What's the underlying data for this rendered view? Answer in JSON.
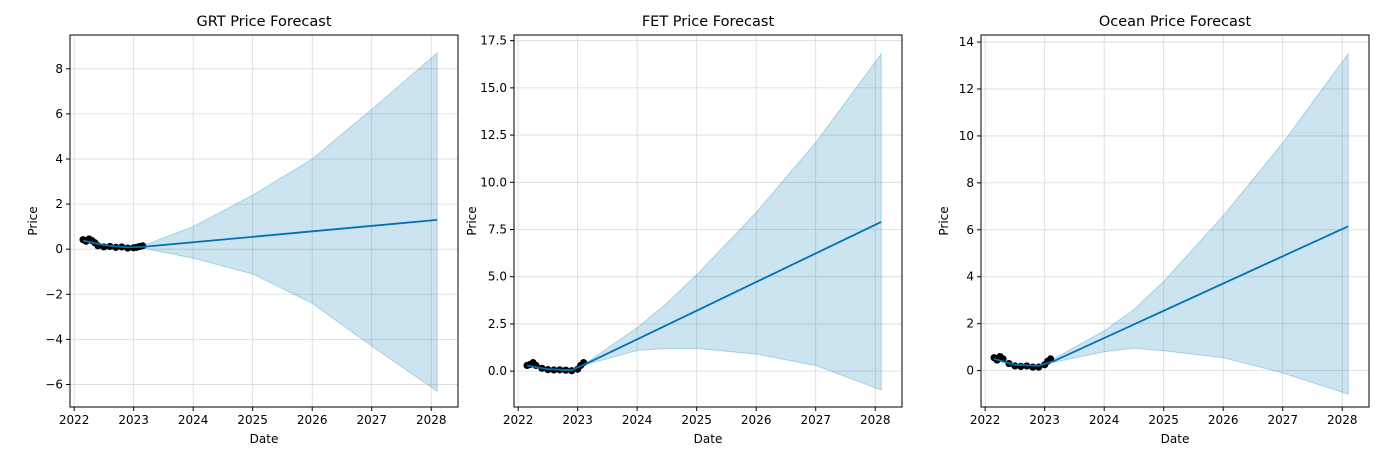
{
  "colors": {
    "forecast_line": "#0072B2",
    "interval_fill": "#0072B2",
    "observed": "#000000",
    "grid": "#d9d9d9"
  },
  "chart_data": [
    {
      "type": "line",
      "title": "GRT Price Forecast",
      "xlabel": "Date",
      "ylabel": "Price",
      "xlim": [
        2021.93,
        2028.45
      ],
      "ylim": [
        -7.0,
        9.5
      ],
      "x_ticks": [
        2022,
        2023,
        2024,
        2025,
        2026,
        2027,
        2028
      ],
      "y_ticks": [
        -6,
        -4,
        -2,
        0,
        2,
        4,
        6,
        8
      ],
      "y_tick_labels": [
        "−6",
        "−4",
        "−2",
        "0",
        "2",
        "4",
        "6",
        "8"
      ],
      "grid": true,
      "series": [
        {
          "kind": "observed",
          "x": [
            2022.15,
            2022.2,
            2022.25,
            2022.3,
            2022.35,
            2022.4,
            2022.5,
            2022.6,
            2022.7,
            2022.8,
            2022.9,
            2023.0,
            2023.05,
            2023.1,
            2023.15
          ],
          "y": [
            0.42,
            0.35,
            0.45,
            0.38,
            0.28,
            0.15,
            0.1,
            0.12,
            0.08,
            0.1,
            0.05,
            0.06,
            0.08,
            0.12,
            0.15
          ]
        },
        {
          "kind": "forecast",
          "x": [
            2022.15,
            2022.5,
            2022.9,
            2023.15,
            2028.1
          ],
          "y": [
            0.38,
            0.18,
            0.08,
            0.1,
            1.3
          ]
        },
        {
          "kind": "interval",
          "x": [
            2023.15,
            2024,
            2025,
            2026,
            2027,
            2028.1
          ],
          "upper": [
            0.15,
            1.0,
            2.4,
            4.0,
            6.2,
            8.7
          ],
          "lower": [
            0.05,
            -0.4,
            -1.1,
            -2.4,
            -4.3,
            -6.3
          ]
        }
      ]
    },
    {
      "type": "line",
      "title": "FET Price Forecast",
      "xlabel": "Date",
      "ylabel": "Price",
      "xlim": [
        2021.93,
        2028.45
      ],
      "ylim": [
        -1.9,
        17.8
      ],
      "x_ticks": [
        2022,
        2023,
        2024,
        2025,
        2026,
        2027,
        2028
      ],
      "y_ticks": [
        0.0,
        2.5,
        5.0,
        7.5,
        10.0,
        12.5,
        15.0,
        17.5
      ],
      "y_tick_labels": [
        "0.0",
        "2.5",
        "5.0",
        "7.5",
        "10.0",
        "12.5",
        "15.0",
        "17.5"
      ],
      "grid": true,
      "series": [
        {
          "kind": "observed",
          "x": [
            2022.15,
            2022.2,
            2022.25,
            2022.3,
            2022.4,
            2022.5,
            2022.6,
            2022.7,
            2022.8,
            2022.9,
            2023.0,
            2023.05,
            2023.1
          ],
          "y": [
            0.3,
            0.35,
            0.45,
            0.3,
            0.15,
            0.08,
            0.06,
            0.07,
            0.05,
            0.02,
            0.1,
            0.3,
            0.45
          ]
        },
        {
          "kind": "forecast",
          "x": [
            2022.15,
            2022.5,
            2022.9,
            2023.15,
            2028.1
          ],
          "y": [
            0.3,
            0.1,
            0.05,
            0.4,
            7.9
          ]
        },
        {
          "kind": "interval",
          "x": [
            2023.15,
            2024,
            2024.5,
            2025,
            2026,
            2027,
            2028.1
          ],
          "upper": [
            0.45,
            2.3,
            3.6,
            5.1,
            8.4,
            12.1,
            16.8
          ],
          "lower": [
            0.35,
            1.1,
            1.2,
            1.2,
            0.9,
            0.3,
            -1.0
          ]
        }
      ]
    },
    {
      "type": "line",
      "title": "Ocean Price Forecast",
      "xlabel": "Date",
      "ylabel": "Price",
      "xlim": [
        2021.93,
        2028.45
      ],
      "ylim": [
        -1.55,
        14.3
      ],
      "x_ticks": [
        2022,
        2023,
        2024,
        2025,
        2026,
        2027,
        2028
      ],
      "y_ticks": [
        0,
        2,
        4,
        6,
        8,
        10,
        12,
        14
      ],
      "y_tick_labels": [
        "0",
        "2",
        "4",
        "6",
        "8",
        "10",
        "12",
        "14"
      ],
      "grid": true,
      "series": [
        {
          "kind": "observed",
          "x": [
            2022.15,
            2022.2,
            2022.25,
            2022.3,
            2022.4,
            2022.5,
            2022.6,
            2022.7,
            2022.8,
            2022.9,
            2023.0,
            2023.05,
            2023.1
          ],
          "y": [
            0.55,
            0.45,
            0.6,
            0.5,
            0.3,
            0.2,
            0.18,
            0.2,
            0.15,
            0.15,
            0.25,
            0.4,
            0.5
          ]
        },
        {
          "kind": "forecast",
          "x": [
            2022.15,
            2022.5,
            2022.9,
            2023.15,
            2028.1
          ],
          "y": [
            0.5,
            0.25,
            0.2,
            0.4,
            6.15
          ]
        },
        {
          "kind": "interval",
          "x": [
            2023.15,
            2024,
            2024.5,
            2025,
            2026,
            2027,
            2028.1
          ],
          "upper": [
            0.5,
            1.7,
            2.6,
            3.8,
            6.6,
            9.7,
            13.5
          ],
          "lower": [
            0.35,
            0.8,
            0.95,
            0.85,
            0.55,
            -0.1,
            -1.0
          ]
        }
      ]
    }
  ]
}
